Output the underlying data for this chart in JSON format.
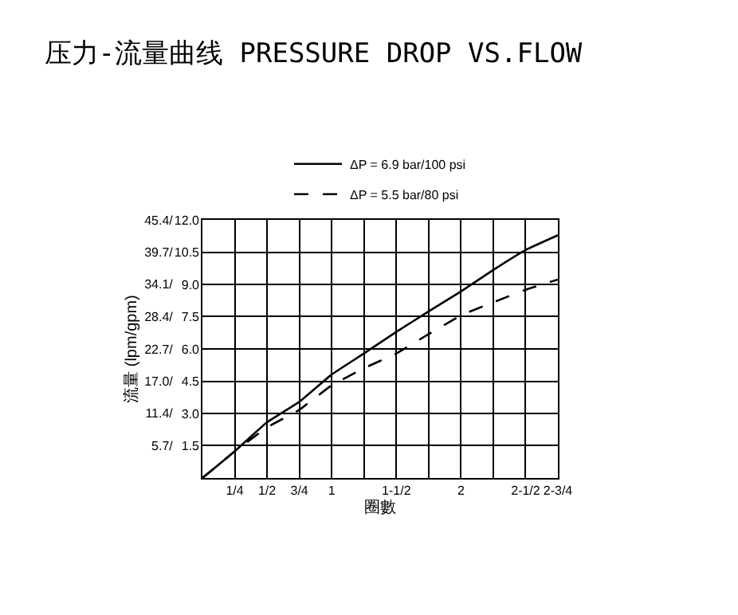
{
  "chart_data": {
    "type": "line",
    "title": "压力-流量曲线 PRESSURE DROP VS.FLOW",
    "xlabel": "圈數",
    "ylabel": "流量 (lpm/gpm)",
    "x": [
      0,
      0.25,
      0.5,
      0.75,
      1,
      1.25,
      1.5,
      1.75,
      2,
      2.25,
      2.5,
      2.75
    ],
    "series": [
      {
        "name": "ΔP = 6.9 bar/100 psi",
        "color": "#000000",
        "line_style": "solid",
        "values": [
          0,
          4.7,
          9.8,
          13.4,
          18.2,
          21.9,
          25.7,
          29.3,
          32.8,
          36.6,
          40.1,
          42.7
        ]
      },
      {
        "name": "ΔP = 5.5 bar/80 psi",
        "color": "#000000",
        "line_style": "dashed",
        "values": [
          0,
          4.7,
          8.9,
          12.0,
          16.3,
          19.3,
          21.9,
          25.3,
          28.6,
          30.9,
          33.1,
          34.9
        ]
      }
    ],
    "xlim": [
      0,
      2.75
    ],
    "xticks": [
      {
        "value": 0,
        "label": null
      },
      {
        "value": 0.25,
        "label": "1/4"
      },
      {
        "value": 0.5,
        "label": "1/2"
      },
      {
        "value": 0.75,
        "label": "3/4"
      },
      {
        "value": 1,
        "label": "1"
      },
      {
        "value": 1.25,
        "label": null
      },
      {
        "value": 1.5,
        "label": "1-1/2"
      },
      {
        "value": 1.75,
        "label": null
      },
      {
        "value": 2,
        "label": "2"
      },
      {
        "value": 2.25,
        "label": null
      },
      {
        "value": 2.5,
        "label": "2-1/2"
      },
      {
        "value": 2.75,
        "label": "2-3/4"
      }
    ],
    "ylim": [
      0,
      45.4
    ],
    "yticks": [
      {
        "value": 0,
        "label": null
      },
      {
        "value": 5.7,
        "label": "5.7/"
      },
      {
        "value": 11.4,
        "label": "11.4/"
      },
      {
        "value": 17.0,
        "label": "17.0/"
      },
      {
        "value": 22.7,
        "label": "22.7/"
      },
      {
        "value": 28.4,
        "label": "28.4/"
      },
      {
        "value": 34.1,
        "label": "34.1/"
      },
      {
        "value": 39.7,
        "label": "39.7/"
      },
      {
        "value": 45.4,
        "label": "45.4/"
      }
    ],
    "y2lim": [
      0,
      12
    ],
    "y2ticks": [
      {
        "value": 0,
        "label": null
      },
      1.5,
      {
        "value": 3,
        "label": "3.0"
      },
      4.5,
      {
        "value": 6,
        "label": "6.0"
      },
      7.5,
      {
        "value": 9,
        "label": "9.0"
      },
      10.5,
      {
        "value": 12,
        "label": "12.0"
      }
    ],
    "grid": true,
    "legend": "top",
    "marker": "none"
  }
}
